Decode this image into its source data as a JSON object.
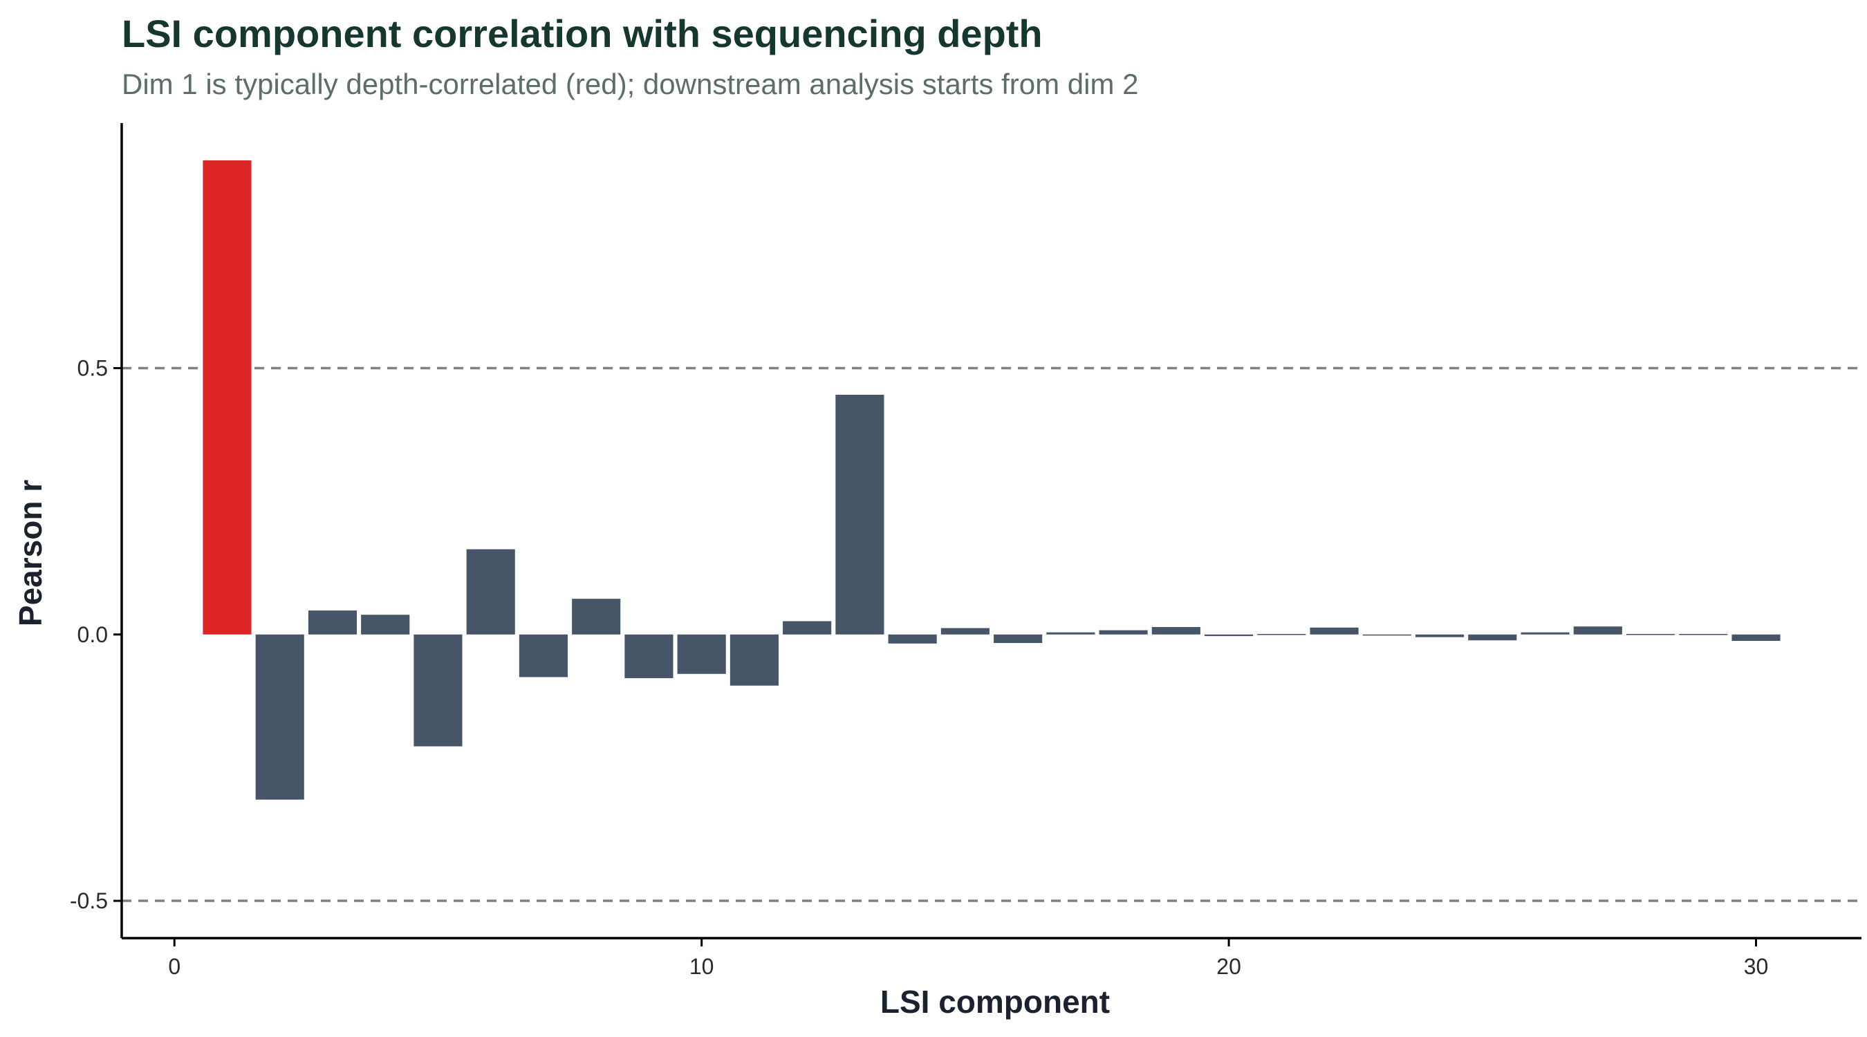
{
  "title": "LSI component correlation with sequencing depth",
  "subtitle": "Dim 1 is typically depth-correlated (red); downstream analysis starts from dim 2",
  "colors": {
    "highlight_bar": "#dc2626",
    "default_bar": "#475569",
    "reference_line": "#808080",
    "axis": "#000000"
  },
  "chart_data": {
    "type": "bar",
    "title": "LSI component correlation with sequencing depth",
    "subtitle": "Dim 1 is typically depth-correlated (red); downstream analysis starts from dim 2",
    "xlabel": "LSI component",
    "ylabel": "Pearson r",
    "xlim": [
      -1,
      32
    ],
    "ylim": [
      -0.57,
      0.96
    ],
    "x_ticks": [
      0,
      10,
      20,
      30
    ],
    "x_tick_labels": [
      "0",
      "10",
      "20",
      "30"
    ],
    "y_ticks": [
      -0.5,
      0.0,
      0.5
    ],
    "y_tick_labels": [
      "-0.5",
      "0.0",
      "0.5"
    ],
    "reference_lines": [
      0.5,
      -0.5
    ],
    "highlighted_component": 1,
    "grid": false,
    "legend": "none",
    "x": [
      1,
      2,
      3,
      4,
      5,
      6,
      7,
      8,
      9,
      10,
      11,
      12,
      13,
      14,
      15,
      16,
      17,
      18,
      19,
      20,
      21,
      22,
      23,
      24,
      25,
      26,
      27,
      28,
      29,
      30
    ],
    "values": [
      0.89,
      -0.31,
      0.045,
      0.037,
      -0.21,
      0.16,
      -0.08,
      0.067,
      -0.082,
      -0.074,
      -0.096,
      0.025,
      0.45,
      -0.017,
      0.012,
      -0.016,
      0.004,
      0.008,
      0.014,
      -0.003,
      -0.001,
      0.013,
      -0.002,
      -0.005,
      -0.011,
      0.004,
      0.015,
      0.001,
      0.0,
      -0.012
    ]
  }
}
